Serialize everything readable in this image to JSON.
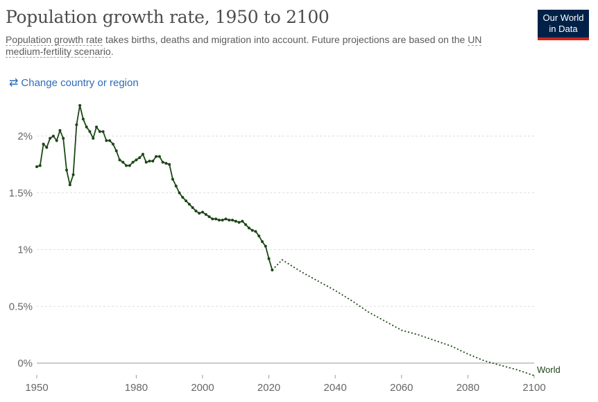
{
  "header": {
    "title": "Population growth rate, 1950 to 2100",
    "subtitle_link": "Population growth rate",
    "subtitle_rest": " takes births, deaths and migration into account. Future projections are based on the ",
    "subtitle_link2": "UN medium-fertility scenario",
    "subtitle_end": "."
  },
  "logo": {
    "line1": "Our World",
    "line2": "in Data"
  },
  "controls": {
    "change_label": "Change country or region"
  },
  "colors": {
    "series": "#1b4715",
    "grid": "#dddddd",
    "axis_text": "#666666",
    "logo_bg": "#002147",
    "logo_bar": "#ce261e",
    "link": "#2d6bb7"
  },
  "chart_data": {
    "type": "line",
    "title": "Population growth rate, 1950 to 2100",
    "xlim": [
      1950,
      2100
    ],
    "ylim": [
      -0.1,
      2.4
    ],
    "x_ticks": [
      1950,
      1980,
      2000,
      2020,
      2040,
      2060,
      2080,
      2100
    ],
    "y_ticks": [
      0,
      0.5,
      1,
      1.5,
      2
    ],
    "y_tick_labels": [
      "0%",
      "0.5%",
      "1%",
      "1.5%",
      "2%"
    ],
    "grid": true,
    "series": [
      {
        "name": "World",
        "estimates": {
          "x": [
            1950,
            1951,
            1952,
            1953,
            1954,
            1955,
            1956,
            1957,
            1958,
            1959,
            1960,
            1961,
            1962,
            1963,
            1964,
            1965,
            1966,
            1967,
            1968,
            1969,
            1970,
            1971,
            1972,
            1973,
            1974,
            1975,
            1976,
            1977,
            1978,
            1979,
            1980,
            1981,
            1982,
            1983,
            1984,
            1985,
            1986,
            1987,
            1988,
            1989,
            1990,
            1991,
            1992,
            1993,
            1994,
            1995,
            1996,
            1997,
            1998,
            1999,
            2000,
            2001,
            2002,
            2003,
            2004,
            2005,
            2006,
            2007,
            2008,
            2009,
            2010,
            2011,
            2012,
            2013,
            2014,
            2015,
            2016,
            2017,
            2018,
            2019,
            2020,
            2021
          ],
          "y": [
            1.73,
            1.74,
            1.93,
            1.9,
            1.98,
            2.0,
            1.96,
            2.05,
            1.98,
            1.7,
            1.57,
            1.66,
            2.1,
            2.27,
            2.15,
            2.08,
            2.04,
            1.98,
            2.08,
            2.04,
            2.04,
            1.96,
            1.96,
            1.93,
            1.87,
            1.79,
            1.77,
            1.74,
            1.74,
            1.77,
            1.79,
            1.81,
            1.84,
            1.77,
            1.78,
            1.78,
            1.82,
            1.82,
            1.77,
            1.76,
            1.75,
            1.62,
            1.56,
            1.5,
            1.46,
            1.43,
            1.4,
            1.37,
            1.34,
            1.32,
            1.33,
            1.31,
            1.29,
            1.27,
            1.27,
            1.26,
            1.26,
            1.27,
            1.26,
            1.26,
            1.25,
            1.24,
            1.25,
            1.22,
            1.19,
            1.17,
            1.16,
            1.12,
            1.07,
            1.03,
            0.92,
            0.82
          ]
        },
        "projections": {
          "x": [
            2021,
            2024,
            2030,
            2040,
            2045,
            2050,
            2055,
            2060,
            2065,
            2070,
            2075,
            2080,
            2085,
            2090,
            2095,
            2100
          ],
          "y": [
            0.82,
            0.91,
            0.8,
            0.64,
            0.55,
            0.45,
            0.37,
            0.29,
            0.25,
            0.2,
            0.15,
            0.08,
            0.02,
            -0.02,
            -0.06,
            -0.11
          ]
        }
      }
    ]
  }
}
